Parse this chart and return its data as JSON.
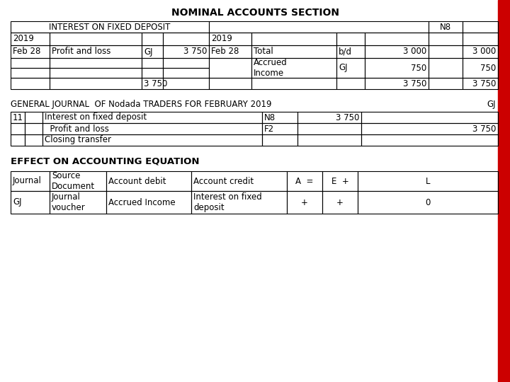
{
  "title": "NOMINAL ACCOUNTS SECTION",
  "bg_color": "#ffffff",
  "red_bar_color": "#cc0000",
  "body_fontsize": 8.5,
  "title_fontsize": 10,
  "ledger_header_left": "INTEREST ON FIXED DEPOSIT",
  "ledger_header_n8": "N8",
  "ledger_left_rows": [
    [
      "2019",
      "",
      "",
      ""
    ],
    [
      "Feb 28",
      "Profit and loss",
      "GJ",
      "3 750"
    ],
    [
      "",
      "",
      "",
      ""
    ],
    [
      "",
      "",
      "",
      ""
    ],
    [
      "",
      "",
      "3 750",
      ""
    ]
  ],
  "ledger_right_rows": [
    [
      "2019",
      "",
      "",
      ""
    ],
    [
      "Feb 28",
      "Total",
      "b/d",
      "3 000"
    ],
    [
      "",
      "Accrued\nIncome",
      "GJ",
      "750"
    ],
    [
      "",
      "",
      "",
      "3 750"
    ]
  ],
  "gj_title": "GENERAL JOURNAL  OF Nodada TRADERS FOR FEBRUARY 2019",
  "gj_ref": "GJ",
  "gj_rows": [
    [
      "11",
      "",
      "Interest on fixed deposit",
      "N8",
      "3 750",
      ""
    ],
    [
      "",
      "",
      "  Profit and loss",
      "F2",
      "",
      "3 750"
    ],
    [
      "",
      "",
      "Closing transfer",
      "",
      "",
      ""
    ]
  ],
  "effect_title": "EFFECT ON ACCOUNTING EQUATION",
  "eq_header": [
    "Journal",
    "Source\nDocument",
    "Account debit",
    "Account credit",
    "A  =",
    "E  +",
    "L"
  ],
  "eq_data": [
    "GJ",
    "Journal\nvoucher",
    "Accrued Income",
    "Interest on fixed\ndeposit",
    "+",
    "+",
    "0"
  ]
}
